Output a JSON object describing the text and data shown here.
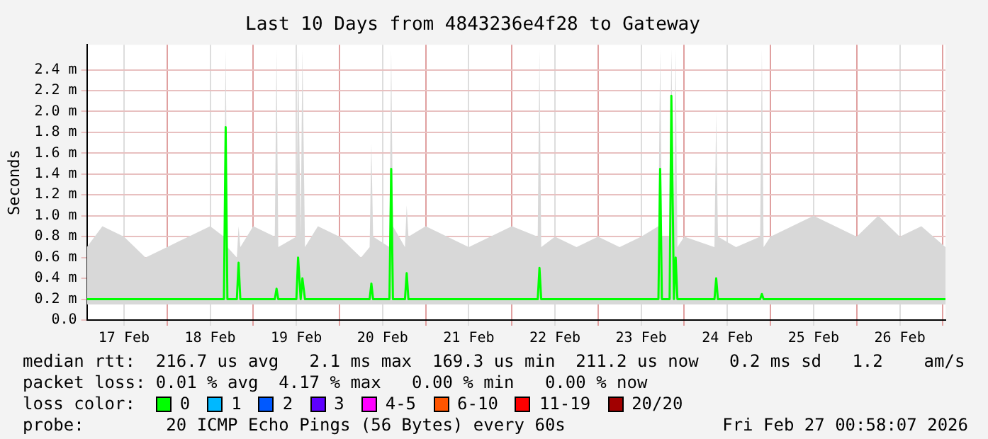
{
  "chart_data": {
    "type": "line",
    "title": "Last 10 Days from 4843236e4f28 to Gateway",
    "ylabel": "Seconds",
    "x": [
      "2026-02-17T01:41",
      "2026-02-17T06:00",
      "2026-02-17T12:00",
      "2026-02-17T18:00",
      "2026-02-18T00:00",
      "2026-02-18T06:00",
      "2026-02-18T12:00",
      "2026-02-18T15:50",
      "2026-02-18T16:19",
      "2026-02-18T16:48",
      "2026-02-18T19:26",
      "2026-02-18T19:55",
      "2026-02-18T20:24",
      "2026-02-19T00:00",
      "2026-02-19T06:00",
      "2026-02-19T06:29",
      "2026-02-19T06:58",
      "2026-02-19T12:00",
      "2026-02-19T12:29",
      "2026-02-19T13:12",
      "2026-02-19T13:41",
      "2026-02-19T14:24",
      "2026-02-19T18:00",
      "2026-02-20T00:00",
      "2026-02-20T06:00",
      "2026-02-20T08:24",
      "2026-02-20T08:53",
      "2026-02-20T09:22",
      "2026-02-20T13:55",
      "2026-02-20T14:24",
      "2026-02-20T14:53",
      "2026-02-20T18:14",
      "2026-02-20T18:43",
      "2026-02-20T19:12",
      "2026-02-21T00:00",
      "2026-02-21T06:00",
      "2026-02-21T12:00",
      "2026-02-21T18:00",
      "2026-02-22T00:00",
      "2026-02-22T07:12",
      "2026-02-22T07:41",
      "2026-02-22T08:10",
      "2026-02-22T12:00",
      "2026-02-22T18:00",
      "2026-02-23T00:00",
      "2026-02-23T06:00",
      "2026-02-23T12:00",
      "2026-02-23T16:48",
      "2026-02-23T17:17",
      "2026-02-23T17:46",
      "2026-02-23T19:55",
      "2026-02-23T20:24",
      "2026-02-23T21:07",
      "2026-02-23T21:36",
      "2026-02-23T22:05",
      "2026-02-24T00:00",
      "2026-02-24T08:24",
      "2026-02-24T08:53",
      "2026-02-24T09:22",
      "2026-02-24T14:24",
      "2026-02-24T21:07",
      "2026-02-24T21:36",
      "2026-02-24T22:05",
      "2026-02-25T00:00",
      "2026-02-25T06:00",
      "2026-02-25T12:00",
      "2026-02-25T18:00",
      "2026-02-26T00:00",
      "2026-02-26T06:00",
      "2026-02-26T12:00",
      "2026-02-26T18:00",
      "2026-02-27T00:43"
    ],
    "series": [
      {
        "name": "0",
        "color": "#00ff00",
        "values": [
          0.2,
          0.2,
          0.2,
          0.2,
          0.2,
          0.2,
          0.2,
          0.2,
          1.85,
          0.2,
          0.2,
          0.55,
          0.2,
          0.2,
          0.2,
          0.3,
          0.2,
          0.2,
          0.6,
          0.2,
          0.4,
          0.2,
          0.2,
          0.2,
          0.2,
          0.2,
          0.35,
          0.2,
          0.2,
          1.45,
          0.2,
          0.2,
          0.45,
          0.2,
          0.2,
          0.2,
          0.2,
          0.2,
          0.2,
          0.2,
          0.5,
          0.2,
          0.2,
          0.2,
          0.2,
          0.2,
          0.2,
          0.2,
          1.45,
          0.2,
          0.2,
          2.15,
          0.2,
          0.6,
          0.2,
          0.2,
          0.2,
          0.4,
          0.2,
          0.2,
          0.2,
          0.25,
          0.2,
          0.2,
          0.2,
          0.2,
          0.2,
          0.2,
          0.2,
          0.2,
          0.2,
          0.2
        ],
        "lower": [
          0.15,
          0.15,
          0.15,
          0.15,
          0.15,
          0.15,
          0.15,
          0.15,
          0.15,
          0.15,
          0.15,
          0.15,
          0.15,
          0.15,
          0.15,
          0.15,
          0.15,
          0.15,
          0.15,
          0.15,
          0.15,
          0.15,
          0.15,
          0.15,
          0.15,
          0.15,
          0.15,
          0.15,
          0.15,
          0.15,
          0.15,
          0.15,
          0.15,
          0.15,
          0.15,
          0.15,
          0.15,
          0.15,
          0.15,
          0.15,
          0.15,
          0.15,
          0.15,
          0.15,
          0.15,
          0.15,
          0.15,
          0.15,
          0.15,
          0.15,
          0.15,
          0.15,
          0.15,
          0.15,
          0.15,
          0.15,
          0.15,
          0.15,
          0.15,
          0.15,
          0.15,
          0.15,
          0.15,
          0.15,
          0.15,
          0.15,
          0.15,
          0.15,
          0.15,
          0.15,
          0.15,
          0.15
        ],
        "upper": [
          0.7,
          0.9,
          0.8,
          0.6,
          0.7,
          0.8,
          0.9,
          0.8,
          2.6,
          0.7,
          0.6,
          0.9,
          0.7,
          0.9,
          0.8,
          2.6,
          0.7,
          0.8,
          2.6,
          0.8,
          2.6,
          0.7,
          0.9,
          0.8,
          0.6,
          0.7,
          1.7,
          0.8,
          0.7,
          2.6,
          0.9,
          0.7,
          1.1,
          0.8,
          0.9,
          0.8,
          0.7,
          0.8,
          0.9,
          0.8,
          2.6,
          0.7,
          0.8,
          0.7,
          0.8,
          0.7,
          0.8,
          0.9,
          2.6,
          0.8,
          0.8,
          2.6,
          0.8,
          2.6,
          0.7,
          0.8,
          0.7,
          2.0,
          0.8,
          0.7,
          0.8,
          2.6,
          0.7,
          0.8,
          0.9,
          1.0,
          0.9,
          0.8,
          1.0,
          0.8,
          0.9,
          0.7
        ]
      },
      {
        "name": "1",
        "color": "#00b8ff",
        "values": [
          null,
          null,
          null,
          null,
          null,
          null,
          null,
          null,
          null,
          null,
          null,
          null,
          null,
          null,
          null,
          null,
          null,
          null,
          null,
          null,
          null,
          null,
          null,
          null,
          null,
          null,
          null,
          null,
          null,
          null,
          null,
          null,
          null,
          null,
          null,
          null,
          null,
          null,
          null,
          null,
          null,
          null,
          null,
          null,
          null,
          null,
          null,
          null,
          null,
          null,
          null,
          null,
          null,
          null,
          null,
          null,
          null,
          null,
          null,
          null,
          null,
          null,
          null,
          null,
          null,
          null,
          null,
          null,
          null,
          null,
          null,
          null
        ]
      },
      {
        "name": "2",
        "color": "#0059ff",
        "values": [
          null,
          null,
          null,
          null,
          null,
          null,
          null,
          null,
          null,
          null,
          null,
          null,
          null,
          null,
          null,
          null,
          null,
          null,
          null,
          null,
          null,
          null,
          null,
          null,
          null,
          null,
          null,
          null,
          null,
          null,
          null,
          null,
          null,
          null,
          null,
          null,
          null,
          null,
          null,
          null,
          null,
          null,
          null,
          null,
          null,
          null,
          null,
          null,
          null,
          null,
          null,
          null,
          null,
          null,
          null,
          null,
          null,
          null,
          null,
          null,
          null,
          null,
          null,
          null,
          null,
          null,
          null,
          null,
          null,
          null,
          null,
          null
        ]
      },
      {
        "name": "3",
        "color": "#5e00ff",
        "values": [
          null,
          null,
          null,
          null,
          null,
          null,
          null,
          null,
          null,
          null,
          null,
          null,
          null,
          null,
          null,
          null,
          null,
          null,
          null,
          null,
          null,
          null,
          null,
          null,
          null,
          null,
          null,
          null,
          null,
          null,
          null,
          null,
          null,
          null,
          null,
          null,
          null,
          null,
          null,
          null,
          null,
          null,
          null,
          null,
          null,
          null,
          null,
          null,
          null,
          null,
          null,
          null,
          null,
          null,
          null,
          null,
          null,
          null,
          null,
          null,
          null,
          null,
          null,
          null,
          null,
          null,
          null,
          null,
          null,
          null,
          null,
          null
        ]
      },
      {
        "name": "4-5",
        "color": "#ff00ff",
        "values": [
          null,
          null,
          null,
          null,
          null,
          null,
          null,
          null,
          null,
          null,
          null,
          null,
          null,
          null,
          null,
          null,
          null,
          null,
          null,
          null,
          null,
          null,
          null,
          null,
          null,
          null,
          null,
          null,
          null,
          null,
          null,
          null,
          null,
          null,
          null,
          null,
          null,
          null,
          null,
          null,
          null,
          null,
          null,
          null,
          null,
          null,
          null,
          null,
          null,
          null,
          null,
          null,
          null,
          null,
          null,
          null,
          null,
          null,
          null,
          null,
          null,
          null,
          null,
          null,
          null,
          null,
          null,
          null,
          null,
          null,
          null,
          null
        ]
      },
      {
        "name": "6-10",
        "color": "#ff5500",
        "values": [
          null,
          null,
          null,
          null,
          null,
          null,
          null,
          null,
          null,
          null,
          null,
          null,
          null,
          null,
          null,
          null,
          null,
          null,
          null,
          null,
          null,
          null,
          null,
          null,
          null,
          null,
          null,
          null,
          null,
          null,
          null,
          null,
          null,
          null,
          null,
          null,
          null,
          null,
          null,
          null,
          null,
          null,
          null,
          null,
          null,
          null,
          null,
          null,
          null,
          null,
          null,
          null,
          null,
          null,
          null,
          null,
          null,
          null,
          null,
          null,
          null,
          null,
          null,
          null,
          null,
          null,
          null,
          null,
          null,
          null,
          null,
          null
        ]
      },
      {
        "name": "11-19",
        "color": "#ff0000",
        "values": [
          null,
          null,
          null,
          null,
          null,
          null,
          null,
          null,
          null,
          null,
          null,
          null,
          null,
          null,
          null,
          null,
          null,
          null,
          null,
          null,
          null,
          null,
          null,
          null,
          null,
          null,
          null,
          null,
          null,
          null,
          null,
          null,
          null,
          null,
          null,
          null,
          null,
          null,
          null,
          null,
          null,
          null,
          null,
          null,
          null,
          null,
          null,
          null,
          null,
          null,
          null,
          null,
          null,
          null,
          null,
          null,
          null,
          null,
          null,
          null,
          null,
          null,
          null,
          null,
          null,
          null,
          null,
          null,
          null,
          null,
          null,
          null
        ]
      },
      {
        "name": "20/20",
        "color": "#a10000",
        "values": [
          null,
          null,
          null,
          null,
          null,
          null,
          null,
          null,
          null,
          null,
          null,
          null,
          null,
          null,
          null,
          null,
          null,
          null,
          null,
          null,
          null,
          null,
          null,
          null,
          null,
          null,
          null,
          null,
          null,
          null,
          null,
          null,
          null,
          null,
          null,
          null,
          null,
          null,
          null,
          null,
          null,
          null,
          null,
          null,
          null,
          null,
          null,
          null,
          null,
          null,
          null,
          null,
          null,
          null,
          null,
          null,
          null,
          null,
          null,
          null,
          null,
          null,
          null,
          null,
          null,
          null,
          null,
          null,
          null,
          null,
          null,
          null
        ]
      }
    ],
    "legend": "bottom",
    "legend_title": "loss color:",
    "xlim": [
      "2026-02-17T01:41",
      "2026-02-27T00:43"
    ],
    "xticks": [
      {
        "value": "2026-02-17T12:00",
        "label": "17 Feb"
      },
      {
        "value": "2026-02-18T00:00",
        "label": null
      },
      {
        "value": "2026-02-18T12:00",
        "label": "18 Feb"
      },
      {
        "value": "2026-02-19T00:00",
        "label": null
      },
      {
        "value": "2026-02-19T12:00",
        "label": "19 Feb"
      },
      {
        "value": "2026-02-20T00:00",
        "label": null
      },
      {
        "value": "2026-02-20T12:00",
        "label": "20 Feb"
      },
      {
        "value": "2026-02-21T00:00",
        "label": null
      },
      {
        "value": "2026-02-21T12:00",
        "label": "21 Feb"
      },
      {
        "value": "2026-02-22T00:00",
        "label": null
      },
      {
        "value": "2026-02-22T12:00",
        "label": "22 Feb"
      },
      {
        "value": "2026-02-23T00:00",
        "label": null
      },
      {
        "value": "2026-02-23T12:00",
        "label": "23 Feb"
      },
      {
        "value": "2026-02-24T00:00",
        "label": null
      },
      {
        "value": "2026-02-24T12:00",
        "label": "24 Feb"
      },
      {
        "value": "2026-02-25T00:00",
        "label": null
      },
      {
        "value": "2026-02-25T12:00",
        "label": "25 Feb"
      },
      {
        "value": "2026-02-26T00:00",
        "label": null
      },
      {
        "value": "2026-02-26T12:00",
        "label": "26 Feb"
      },
      {
        "value": "2026-02-27T00:00",
        "label": null
      }
    ],
    "ylim": [
      0,
      2.64
    ],
    "yticks": [
      {
        "value": 0,
        "label": "0.0"
      },
      {
        "value": 0.2,
        "label": "0.2 m"
      },
      {
        "value": 0.4,
        "label": "0.4 m"
      },
      {
        "value": 0.6,
        "label": "0.6 m"
      },
      {
        "value": 0.8,
        "label": "0.8 m"
      },
      {
        "value": 1.0,
        "label": "1.0 m"
      },
      {
        "value": 1.2,
        "label": "1.2 m"
      },
      {
        "value": 1.4,
        "label": "1.4 m"
      },
      {
        "value": 1.6,
        "label": "1.6 m"
      },
      {
        "value": 1.8,
        "label": "1.8 m"
      },
      {
        "value": 2.0,
        "label": "2.0 m"
      },
      {
        "value": 2.2,
        "label": "2.2 m"
      },
      {
        "value": 2.4,
        "label": "2.4 m"
      }
    ],
    "grid": true,
    "marker": "none",
    "line_style": "solid",
    "annotations": [
      "median rtt:  216.7 us avg   2.1 ms max  169.3 us min  211.2 us now   0.2 ms sd   1.2    am/s",
      "packet loss: 0.01 % avg  4.17 % max   0.00 % min   0.00 % now",
      "probe:        20 ICMP Echo Pings (56 Bytes) every 60s",
      "Fri Feb 27 00:58:07 2026"
    ]
  }
}
